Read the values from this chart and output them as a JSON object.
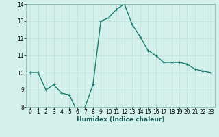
{
  "x": [
    0,
    1,
    2,
    3,
    4,
    5,
    6,
    7,
    8,
    9,
    10,
    11,
    12,
    13,
    14,
    15,
    16,
    17,
    18,
    19,
    20,
    21,
    22,
    23
  ],
  "y": [
    10,
    10,
    9,
    9.3,
    8.8,
    8.7,
    7.7,
    8.0,
    9.3,
    13.0,
    13.2,
    13.7,
    14.0,
    12.8,
    12.1,
    11.3,
    11.0,
    10.6,
    10.6,
    10.6,
    10.5,
    10.2,
    10.1,
    10.0
  ],
  "xlabel": "Humidex (Indice chaleur)",
  "xlim": [
    -0.5,
    23.5
  ],
  "ylim": [
    8,
    14
  ],
  "yticks": [
    8,
    9,
    10,
    11,
    12,
    13,
    14
  ],
  "xticks": [
    0,
    1,
    2,
    3,
    4,
    5,
    6,
    7,
    8,
    9,
    10,
    11,
    12,
    13,
    14,
    15,
    16,
    17,
    18,
    19,
    20,
    21,
    22,
    23
  ],
  "line_color": "#1a7a6e",
  "marker": "+",
  "bg_color": "#d4f0eb",
  "grid_color": "#c0e0da",
  "marker_size": 3,
  "line_width": 1.0,
  "tick_fontsize": 5.5,
  "xlabel_fontsize": 6.5
}
